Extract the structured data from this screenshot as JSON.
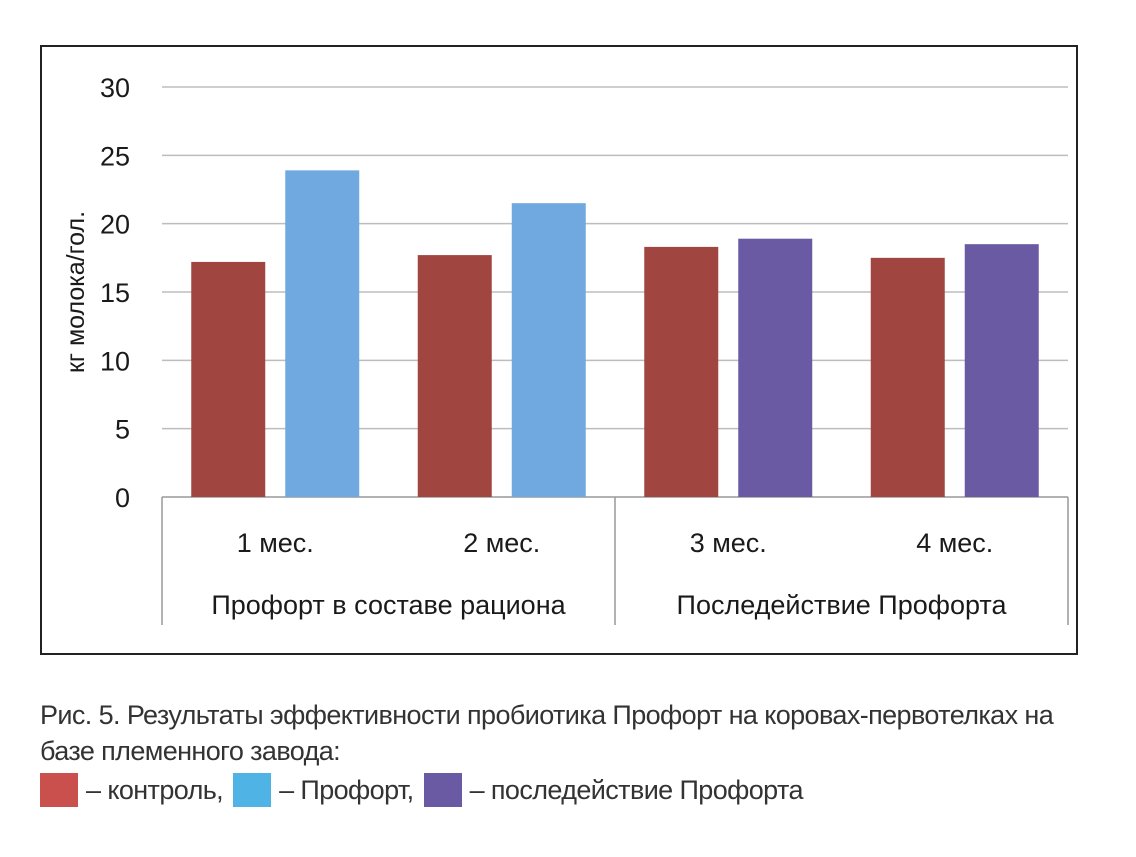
{
  "chart_data": {
    "type": "bar",
    "ylabel": "кг молока/гол.",
    "ylim": [
      0,
      30
    ],
    "yticks": [
      0,
      5,
      10,
      15,
      20,
      25,
      30
    ],
    "grid": true,
    "categories": [
      "1 мес.",
      "2 мес.",
      "3 мес.",
      "4 мес."
    ],
    "groups": [
      {
        "label": "Профорт в составе рациона",
        "categories": [
          "1 мес.",
          "2 мес."
        ]
      },
      {
        "label": "Последействие Профорта",
        "categories": [
          "3 мес.",
          "4 мес."
        ]
      }
    ],
    "series": [
      {
        "name": "контроль",
        "color": "#a0453f",
        "values": [
          17.2,
          17.7,
          18.3,
          17.5
        ]
      },
      {
        "name": "Профорт / последействие Профорта",
        "colors": [
          "#6fa9e0",
          "#6fa9e0",
          "#6a5aa3",
          "#6a5aa3"
        ],
        "values": [
          23.9,
          21.5,
          18.9,
          18.5
        ]
      }
    ]
  },
  "caption": {
    "text": "Рис. 5. Результаты эффективности пробиотика Профорт на коровах-первотелках на базе племенного завода:",
    "legend": [
      {
        "label": "– контроль,",
        "color": "#c9504c",
        "icon": "red-swatch"
      },
      {
        "label": "– Профорт,",
        "color": "#4fb3e6",
        "icon": "blue-swatch"
      },
      {
        "label": "– последействие Профорта",
        "color": "#6a5aa3",
        "icon": "purple-swatch"
      }
    ]
  }
}
